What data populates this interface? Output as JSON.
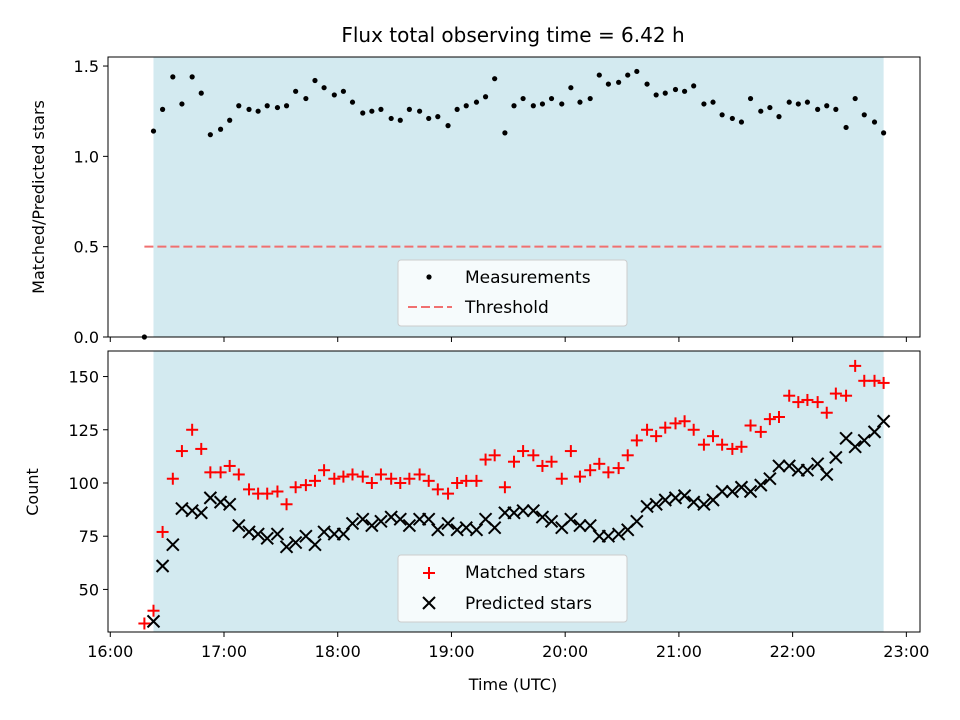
{
  "chart_data": {
    "title": "Flux total observing time = 6.42 h",
    "xlabel": "Time (UTC)",
    "x_unit": "hours UTC",
    "xlim": [
      15.98,
      23.12
    ],
    "x_ticks": [
      16,
      17,
      18,
      19,
      20,
      21,
      22,
      23
    ],
    "x_tick_labels": [
      "16:00",
      "17:00",
      "18:00",
      "19:00",
      "20:00",
      "21:00",
      "22:00",
      "23:00"
    ],
    "observing_window": {
      "start": 16.38,
      "end": 22.8,
      "color": "#d3eaf0"
    },
    "panels": [
      {
        "type": "scatter",
        "ylabel": "Matched/Predicted stars",
        "ylim": [
          0,
          1.55
        ],
        "y_ticks": [
          0.0,
          0.5,
          1.0,
          1.5
        ],
        "y_tick_labels": [
          "0.0",
          "0.5",
          "1.0",
          "1.5"
        ],
        "legend_position": "bottom-center",
        "threshold": {
          "name": "Threshold",
          "value": 0.5,
          "x_start": 16.3,
          "x_end": 22.8,
          "color": "#f07070"
        },
        "series": [
          {
            "name": "Measurements",
            "marker": "dot",
            "color": "#000000",
            "x": [
              16.3,
              16.38,
              16.46,
              16.55,
              16.63,
              16.72,
              16.8,
              16.88,
              16.97,
              17.05,
              17.13,
              17.22,
              17.3,
              17.38,
              17.47,
              17.55,
              17.63,
              17.72,
              17.8,
              17.88,
              17.97,
              18.05,
              18.13,
              18.22,
              18.3,
              18.38,
              18.47,
              18.55,
              18.63,
              18.72,
              18.8,
              18.88,
              18.97,
              19.05,
              19.13,
              19.22,
              19.3,
              19.38,
              19.47,
              19.55,
              19.63,
              19.72,
              19.8,
              19.88,
              19.97,
              20.05,
              20.13,
              20.22,
              20.3,
              20.38,
              20.47,
              20.55,
              20.63,
              20.72,
              20.8,
              20.88,
              20.97,
              21.05,
              21.13,
              21.22,
              21.3,
              21.38,
              21.47,
              21.55,
              21.63,
              21.72,
              21.8,
              21.88,
              21.97,
              22.05,
              22.13,
              22.22,
              22.3,
              22.38,
              22.47,
              22.55,
              22.63,
              22.72,
              22.8
            ],
            "y": [
              0.0,
              1.14,
              1.26,
              1.44,
              1.29,
              1.44,
              1.35,
              1.12,
              1.15,
              1.2,
              1.28,
              1.26,
              1.25,
              1.28,
              1.27,
              1.28,
              1.36,
              1.32,
              1.42,
              1.38,
              1.34,
              1.36,
              1.3,
              1.24,
              1.25,
              1.26,
              1.21,
              1.2,
              1.26,
              1.25,
              1.21,
              1.22,
              1.17,
              1.26,
              1.28,
              1.3,
              1.33,
              1.43,
              1.13,
              1.28,
              1.32,
              1.28,
              1.29,
              1.32,
              1.29,
              1.38,
              1.3,
              1.32,
              1.45,
              1.4,
              1.41,
              1.45,
              1.47,
              1.4,
              1.34,
              1.35,
              1.37,
              1.36,
              1.39,
              1.29,
              1.3,
              1.23,
              1.21,
              1.19,
              1.32,
              1.25,
              1.27,
              1.22,
              1.3,
              1.29,
              1.3,
              1.26,
              1.28,
              1.26,
              1.16,
              1.32,
              1.23,
              1.19,
              1.13
            ]
          }
        ]
      },
      {
        "type": "scatter",
        "ylabel": "Count",
        "ylim": [
          30,
          162
        ],
        "y_ticks": [
          50,
          75,
          100,
          125,
          150
        ],
        "y_tick_labels": [
          "50",
          "75",
          "100",
          "125",
          "150"
        ],
        "legend_position": "bottom-center",
        "series": [
          {
            "name": "Matched stars",
            "marker": "plus",
            "color": "#ff0000",
            "x": [
              16.3,
              16.38,
              16.46,
              16.55,
              16.63,
              16.72,
              16.8,
              16.88,
              16.97,
              17.05,
              17.13,
              17.22,
              17.3,
              17.38,
              17.47,
              17.55,
              17.63,
              17.72,
              17.8,
              17.88,
              17.97,
              18.05,
              18.13,
              18.22,
              18.3,
              18.38,
              18.47,
              18.55,
              18.63,
              18.72,
              18.8,
              18.88,
              18.97,
              19.05,
              19.13,
              19.22,
              19.3,
              19.38,
              19.47,
              19.55,
              19.63,
              19.72,
              19.8,
              19.88,
              19.97,
              20.05,
              20.13,
              20.22,
              20.3,
              20.38,
              20.47,
              20.55,
              20.63,
              20.72,
              20.8,
              20.88,
              20.97,
              21.05,
              21.13,
              21.22,
              21.3,
              21.38,
              21.47,
              21.55,
              21.63,
              21.72,
              21.8,
              21.88,
              21.97,
              22.05,
              22.13,
              22.22,
              22.3,
              22.38,
              22.47,
              22.55,
              22.63,
              22.72,
              22.8
            ],
            "y": [
              34,
              40,
              77,
              102,
              115,
              125,
              116,
              105,
              105,
              108,
              104,
              97,
              95,
              95,
              96,
              90,
              98,
              99,
              101,
              106,
              102,
              103,
              104,
              103,
              100,
              104,
              102,
              100,
              102,
              104,
              101,
              97,
              95,
              100,
              101,
              101,
              111,
              113,
              98,
              110,
              115,
              113,
              108,
              110,
              102,
              115,
              103,
              106,
              109,
              105,
              107,
              113,
              120,
              125,
              122,
              126,
              128,
              129,
              125,
              118,
              122,
              118,
              116,
              117,
              127,
              124,
              130,
              131,
              141,
              138,
              139,
              138,
              133,
              142,
              141,
              155,
              148,
              148,
              147
            ]
          },
          {
            "name": "Predicted stars",
            "marker": "x",
            "color": "#000000",
            "x": [
              16.38,
              16.46,
              16.55,
              16.63,
              16.72,
              16.8,
              16.88,
              16.97,
              17.05,
              17.13,
              17.22,
              17.3,
              17.38,
              17.47,
              17.55,
              17.63,
              17.72,
              17.8,
              17.88,
              17.97,
              18.05,
              18.13,
              18.22,
              18.3,
              18.38,
              18.47,
              18.55,
              18.63,
              18.72,
              18.8,
              18.88,
              18.97,
              19.05,
              19.13,
              19.22,
              19.3,
              19.38,
              19.47,
              19.55,
              19.63,
              19.72,
              19.8,
              19.88,
              19.97,
              20.05,
              20.13,
              20.22,
              20.3,
              20.38,
              20.47,
              20.55,
              20.63,
              20.72,
              20.8,
              20.88,
              20.97,
              21.05,
              21.13,
              21.22,
              21.3,
              21.38,
              21.47,
              21.55,
              21.63,
              21.72,
              21.8,
              21.88,
              21.97,
              22.05,
              22.13,
              22.22,
              22.3,
              22.38,
              22.47,
              22.55,
              22.63,
              22.72,
              22.8
            ],
            "y": [
              35,
              61,
              71,
              88,
              87,
              86,
              93,
              91,
              90,
              80,
              77,
              76,
              74,
              76,
              70,
              72,
              75,
              71,
              77,
              76,
              76,
              81,
              83,
              80,
              82,
              84,
              83,
              80,
              83,
              83,
              78,
              81,
              78,
              79,
              78,
              83,
              79,
              86,
              86,
              87,
              87,
              84,
              82,
              79,
              83,
              80,
              80,
              75,
              75,
              76,
              78,
              82,
              89,
              90,
              92,
              93,
              94,
              91,
              90,
              92,
              96,
              96,
              98,
              96,
              99,
              102,
              108,
              108,
              106,
              106,
              109,
              104,
              112,
              121,
              117,
              120,
              124,
              129
            ]
          }
        ]
      }
    ]
  }
}
